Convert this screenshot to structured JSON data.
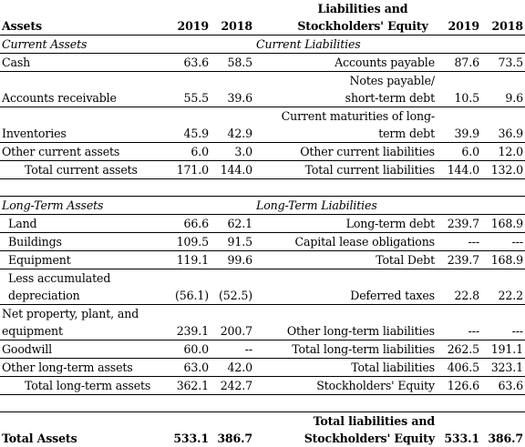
{
  "header": {
    "assets_label": "Assets",
    "year1": "2019",
    "year2": "2018",
    "liabilities_label": "Liabilities and Stockholders' Equity"
  },
  "current": {
    "assets_title": "Current  Assets",
    "liabilities_title": "Current  Liabilities",
    "rows": [
      {
        "a_label": "Cash",
        "a_2019": "63.6",
        "a_2018": "58.5",
        "l_label": "Accounts payable",
        "l_2019": "87.6",
        "l_2018": "73.5"
      },
      {
        "a_label": "Accounts receivable",
        "a_2019": "55.5",
        "a_2018": "39.6",
        "l_label": "Notes payable/ short-term debt",
        "l_2019": "10.5",
        "l_2018": "9.6"
      },
      {
        "a_label": "Inventories",
        "a_2019": "45.9",
        "a_2018": "42.9",
        "l_label": "Current maturities of long-term debt",
        "l_2019": "39.9",
        "l_2018": "36.9"
      },
      {
        "a_label": "Other current assets",
        "a_2019": "6.0",
        "a_2018": "3.0",
        "l_label": "Other current liabilities",
        "l_2019": "6.0",
        "l_2018": "12.0"
      },
      {
        "a_label": "Total current assets",
        "a_2019": "171.0",
        "a_2018": "144.0",
        "l_label": "Total current liabilities",
        "l_2019": "144.0",
        "l_2018": "132.0"
      }
    ]
  },
  "longterm": {
    "assets_title": "Long-Term Assets",
    "liabilities_title": "Long-Term Liabilities",
    "rows": [
      {
        "a_label": "Land",
        "a_2019": "66.6",
        "a_2018": "62.1",
        "l_label": "Long-term debt",
        "l_2019": "239.7",
        "l_2018": "168.9"
      },
      {
        "a_label": "Buildings",
        "a_2019": "109.5",
        "a_2018": "91.5",
        "l_label": "Capital lease obligations",
        "l_2019": "---",
        "l_2018": "---"
      },
      {
        "a_label": "Equipment",
        "a_2019": "119.1",
        "a_2018": "99.6",
        "l_label": "Total Debt",
        "l_2019": "239.7",
        "l_2018": "168.9"
      },
      {
        "a_label": "Less accumulated depreciation",
        "a_2019": "(56.1)",
        "a_2018": "(52.5)",
        "l_label": "Deferred taxes",
        "l_2019": "22.8",
        "l_2018": "22.2"
      },
      {
        "a_label": "Net property, plant, and equipment",
        "a_2019": "239.1",
        "a_2018": "200.7",
        "l_label": "Other long-term liabilities",
        "l_2019": "---",
        "l_2018": "---"
      },
      {
        "a_label": "Goodwill",
        "a_2019": "60.0",
        "a_2018": "--",
        "l_label": "Total long-term liabilities",
        "l_2019": "262.5",
        "l_2018": "191.1"
      },
      {
        "a_label": "Other long-term assets",
        "a_2019": "63.0",
        "a_2018": "42.0",
        "l_label": "Total liabilities",
        "l_2019": "406.5",
        "l_2018": "323.1"
      },
      {
        "a_label": "Total long-term assets",
        "a_2019": "362.1",
        "a_2018": "242.7",
        "l_label": "Stockholders' Equity",
        "l_2019": "126.6",
        "l_2018": "63.6"
      }
    ]
  },
  "totals": {
    "assets_label": "Total Assets",
    "assets_2019": "533.1",
    "assets_2018": "386.7",
    "liabilities_label": "Total liabilities and Stockholders' Equity",
    "liabilities_2019": "533.1",
    "liabilities_2018": "386.7"
  }
}
